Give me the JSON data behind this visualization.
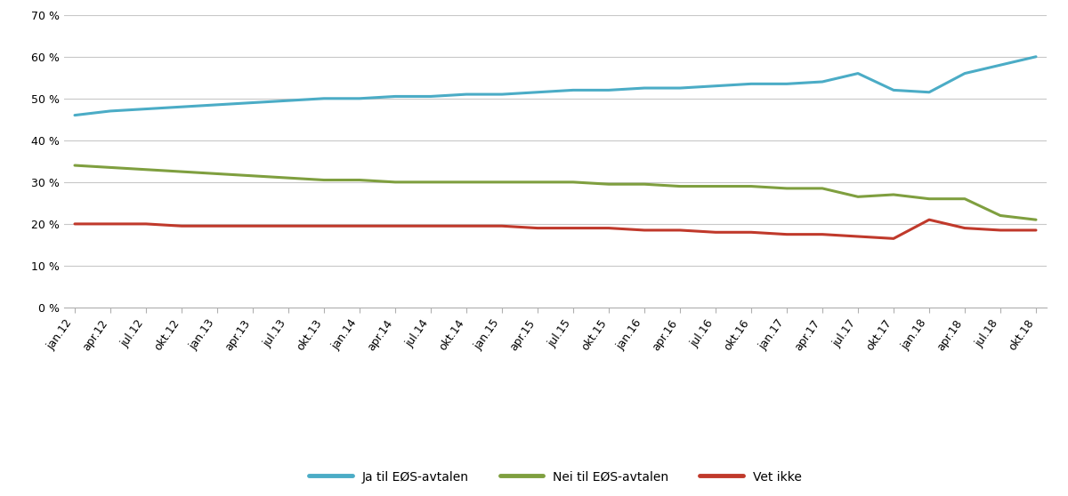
{
  "x_labels": [
    "jan.12",
    "apr.12",
    "jul.12",
    "okt.12",
    "jan.13",
    "apr.13",
    "jul.13",
    "okt.13",
    "jan.14",
    "apr.14",
    "jul.14",
    "okt.14",
    "jan.15",
    "apr.15",
    "jul.15",
    "okt.15",
    "jan.16",
    "apr.16",
    "jul.16",
    "okt.16",
    "jan.17",
    "apr.17",
    "jul.17",
    "okt.17",
    "jan.18",
    "apr.18",
    "jul.18",
    "okt.18"
  ],
  "ja": [
    46,
    47,
    47.5,
    48,
    48.5,
    49,
    49.5,
    50,
    50,
    50.5,
    50.5,
    51,
    51,
    51.5,
    52,
    52,
    52.5,
    52.5,
    53,
    53.5,
    53.5,
    54,
    56,
    52,
    51.5,
    56,
    58,
    60
  ],
  "nei": [
    34,
    33.5,
    33,
    32.5,
    32,
    31.5,
    31,
    30.5,
    30.5,
    30,
    30,
    30,
    30,
    30,
    30,
    29.5,
    29.5,
    29,
    29,
    29,
    28.5,
    28.5,
    26.5,
    27,
    26,
    26,
    22,
    21
  ],
  "vet_ikke": [
    20,
    20,
    20,
    19.5,
    19.5,
    19.5,
    19.5,
    19.5,
    19.5,
    19.5,
    19.5,
    19.5,
    19.5,
    19,
    19,
    19,
    18.5,
    18.5,
    18,
    18,
    17.5,
    17.5,
    17,
    16.5,
    21,
    19,
    18.5,
    18.5
  ],
  "ja_color": "#4bacc6",
  "nei_color": "#7f9f3f",
  "vet_ikke_color": "#c0392b",
  "ja_label": "Ja til EØS-avtalen",
  "nei_label": "Nei til EØS-avtalen",
  "vet_ikke_label": "Vet ikke",
  "ylim": [
    0,
    70
  ],
  "yticks": [
    0,
    10,
    20,
    30,
    40,
    50,
    60,
    70
  ],
  "background_color": "#ffffff",
  "line_width": 2.2,
  "grid_color": "#c8c8c8",
  "spine_color": "#b0b0b0",
  "tick_fontsize": 9,
  "legend_fontsize": 10
}
